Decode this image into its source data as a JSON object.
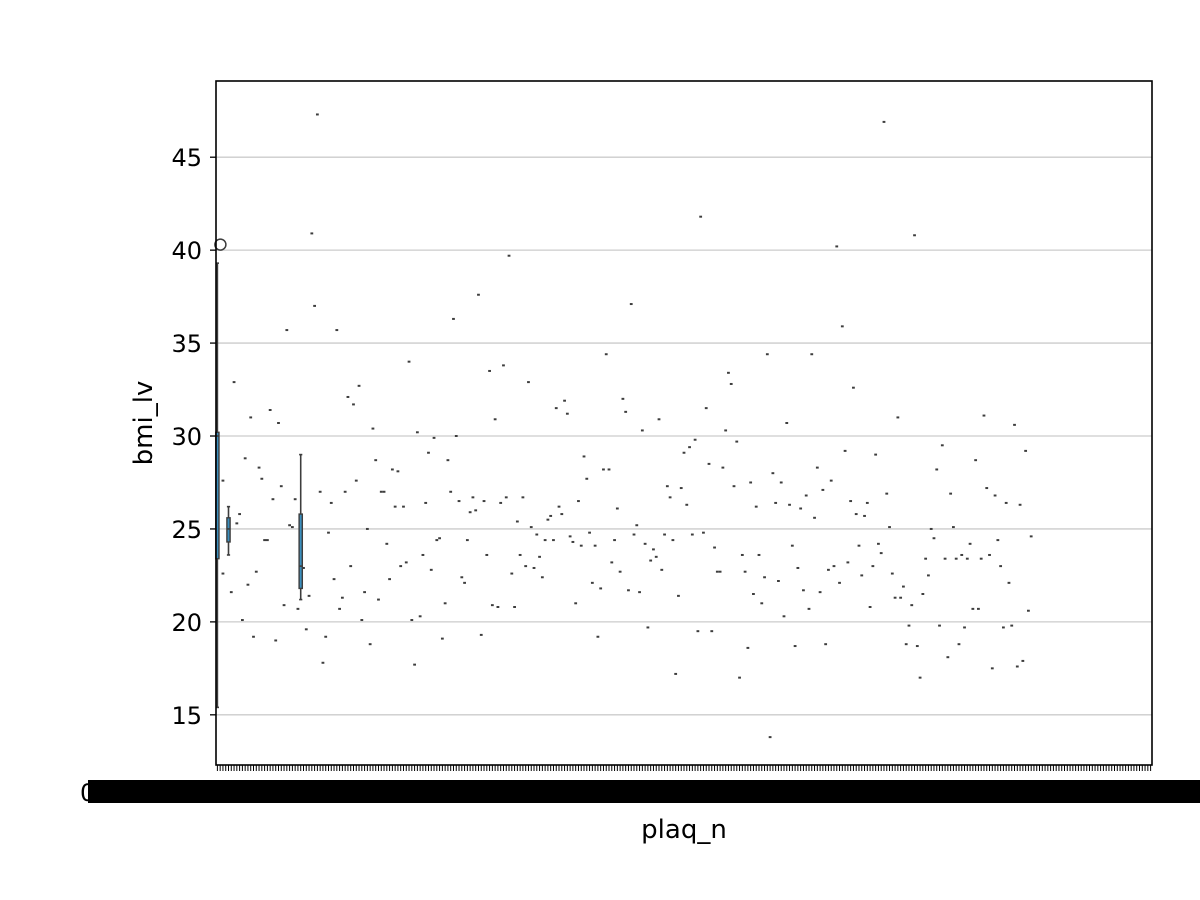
{
  "chart_data": {
    "type": "box",
    "title": "",
    "xlabel": "plaq_n",
    "ylabel": "bmi_lv",
    "ylim": [
      12.3,
      49.1
    ],
    "yticks": [
      15,
      20,
      25,
      30,
      35,
      40,
      45
    ],
    "grid": "y",
    "legend": "none",
    "category_count": 337,
    "x_tick_labels_overlapping": true,
    "x_tick_label_first": "0",
    "box_color": "#3a8fbf",
    "point_color": "#3d3d3d",
    "boxes": [
      {
        "category_index": 0,
        "q1": 23.4,
        "median": 30.0,
        "q3": 30.2,
        "whisker_low": 15.4,
        "whisker_high": 39.3,
        "outliers": [
          40.3
        ]
      },
      {
        "category_index": 4,
        "q1": 24.3,
        "median": 25.0,
        "q3": 25.6,
        "whisker_low": 23.6,
        "whisker_high": 26.2,
        "outliers": []
      },
      {
        "category_index": 30,
        "q1": 21.8,
        "median": 23.0,
        "q3": 25.8,
        "whisker_low": 21.2,
        "whisker_high": 29.0,
        "outliers": []
      }
    ],
    "single_values": [
      [
        2,
        27.6
      ],
      [
        2,
        22.6
      ],
      [
        5,
        21.6
      ],
      [
        6,
        32.9
      ],
      [
        7,
        25.3
      ],
      [
        8,
        25.8
      ],
      [
        9,
        20.1
      ],
      [
        10,
        28.8
      ],
      [
        11,
        22.0
      ],
      [
        12,
        31.0
      ],
      [
        13,
        19.2
      ],
      [
        14,
        22.7
      ],
      [
        15,
        28.3
      ],
      [
        16,
        27.7
      ],
      [
        17,
        24.4
      ],
      [
        18,
        24.4
      ],
      [
        19,
        31.4
      ],
      [
        20,
        26.6
      ],
      [
        21,
        19.0
      ],
      [
        22,
        30.7
      ],
      [
        23,
        27.3
      ],
      [
        24,
        20.9
      ],
      [
        25,
        35.7
      ],
      [
        26,
        25.2
      ],
      [
        27,
        25.1
      ],
      [
        28,
        26.6
      ],
      [
        29,
        20.7
      ],
      [
        31,
        22.9
      ],
      [
        32,
        19.6
      ],
      [
        33,
        21.4
      ],
      [
        34,
        40.9
      ],
      [
        35,
        37.0
      ],
      [
        36,
        47.3
      ],
      [
        37,
        27.0
      ],
      [
        38,
        17.8
      ],
      [
        39,
        19.2
      ],
      [
        40,
        24.8
      ],
      [
        41,
        26.4
      ],
      [
        42,
        22.3
      ],
      [
        43,
        35.7
      ],
      [
        44,
        20.7
      ],
      [
        45,
        21.3
      ],
      [
        46,
        27.0
      ],
      [
        47,
        32.1
      ],
      [
        48,
        23.0
      ],
      [
        49,
        31.7
      ],
      [
        50,
        27.6
      ],
      [
        51,
        32.7
      ],
      [
        52,
        20.1
      ],
      [
        53,
        21.6
      ],
      [
        54,
        25.0
      ],
      [
        55,
        18.8
      ],
      [
        56,
        30.4
      ],
      [
        57,
        28.7
      ],
      [
        58,
        21.2
      ],
      [
        59,
        27.0
      ],
      [
        60,
        27.0
      ],
      [
        61,
        24.2
      ],
      [
        62,
        22.3
      ],
      [
        63,
        28.2
      ],
      [
        64,
        26.2
      ],
      [
        65,
        28.1
      ],
      [
        66,
        23.0
      ],
      [
        67,
        26.2
      ],
      [
        68,
        23.2
      ],
      [
        69,
        34.0
      ],
      [
        70,
        20.1
      ],
      [
        71,
        17.7
      ],
      [
        72,
        30.2
      ],
      [
        73,
        20.3
      ],
      [
        74,
        23.6
      ],
      [
        75,
        26.4
      ],
      [
        76,
        29.1
      ],
      [
        77,
        22.8
      ],
      [
        78,
        29.9
      ],
      [
        79,
        24.4
      ],
      [
        80,
        24.5
      ],
      [
        81,
        19.1
      ],
      [
        82,
        21.0
      ],
      [
        83,
        28.7
      ],
      [
        84,
        27.0
      ],
      [
        85,
        36.3
      ],
      [
        86,
        30.0
      ],
      [
        87,
        26.5
      ],
      [
        88,
        22.4
      ],
      [
        89,
        22.1
      ],
      [
        90,
        24.4
      ],
      [
        91,
        25.9
      ],
      [
        92,
        26.7
      ],
      [
        93,
        26.0
      ],
      [
        94,
        37.6
      ],
      [
        95,
        19.3
      ],
      [
        96,
        26.5
      ],
      [
        97,
        23.6
      ],
      [
        98,
        33.5
      ],
      [
        99,
        20.9
      ],
      [
        100,
        30.9
      ],
      [
        101,
        20.8
      ],
      [
        102,
        26.4
      ],
      [
        103,
        33.8
      ],
      [
        104,
        26.7
      ],
      [
        105,
        39.7
      ],
      [
        106,
        22.6
      ],
      [
        107,
        20.8
      ],
      [
        108,
        25.4
      ],
      [
        109,
        23.6
      ],
      [
        110,
        26.7
      ],
      [
        111,
        23.0
      ],
      [
        112,
        32.9
      ],
      [
        113,
        25.1
      ],
      [
        114,
        22.9
      ],
      [
        115,
        24.7
      ],
      [
        116,
        23.5
      ],
      [
        117,
        22.4
      ],
      [
        118,
        24.4
      ],
      [
        119,
        25.5
      ],
      [
        120,
        25.7
      ],
      [
        121,
        24.4
      ],
      [
        122,
        31.5
      ],
      [
        123,
        26.2
      ],
      [
        124,
        25.8
      ],
      [
        125,
        31.9
      ],
      [
        126,
        31.2
      ],
      [
        127,
        24.6
      ],
      [
        128,
        24.3
      ],
      [
        129,
        21.0
      ],
      [
        130,
        26.5
      ],
      [
        131,
        24.1
      ],
      [
        132,
        28.9
      ],
      [
        133,
        27.7
      ],
      [
        134,
        24.8
      ],
      [
        135,
        22.1
      ],
      [
        136,
        24.1
      ],
      [
        137,
        19.2
      ],
      [
        138,
        21.8
      ],
      [
        139,
        28.2
      ],
      [
        140,
        34.4
      ],
      [
        141,
        28.2
      ],
      [
        142,
        23.2
      ],
      [
        143,
        24.4
      ],
      [
        144,
        26.1
      ],
      [
        145,
        22.7
      ],
      [
        146,
        32.0
      ],
      [
        147,
        31.3
      ],
      [
        148,
        21.7
      ],
      [
        149,
        37.1
      ],
      [
        150,
        24.7
      ],
      [
        151,
        25.2
      ],
      [
        152,
        21.6
      ],
      [
        153,
        30.3
      ],
      [
        154,
        24.2
      ],
      [
        155,
        19.7
      ],
      [
        156,
        23.3
      ],
      [
        157,
        23.9
      ],
      [
        158,
        23.5
      ],
      [
        159,
        30.9
      ],
      [
        160,
        22.8
      ],
      [
        161,
        24.7
      ],
      [
        162,
        27.3
      ],
      [
        163,
        26.7
      ],
      [
        164,
        24.4
      ],
      [
        165,
        17.2
      ],
      [
        166,
        21.4
      ],
      [
        167,
        27.2
      ],
      [
        168,
        29.1
      ],
      [
        169,
        26.3
      ],
      [
        170,
        29.4
      ],
      [
        171,
        24.7
      ],
      [
        172,
        29.8
      ],
      [
        173,
        19.5
      ],
      [
        174,
        41.8
      ],
      [
        175,
        24.8
      ],
      [
        176,
        31.5
      ],
      [
        177,
        28.5
      ],
      [
        178,
        19.5
      ],
      [
        179,
        24.0
      ],
      [
        180,
        22.7
      ],
      [
        181,
        22.7
      ],
      [
        182,
        28.3
      ],
      [
        183,
        30.3
      ],
      [
        184,
        33.4
      ],
      [
        185,
        32.8
      ],
      [
        186,
        27.3
      ],
      [
        187,
        29.7
      ],
      [
        188,
        17.0
      ],
      [
        189,
        23.6
      ],
      [
        190,
        22.7
      ],
      [
        191,
        18.6
      ],
      [
        192,
        27.5
      ],
      [
        193,
        21.5
      ],
      [
        194,
        26.2
      ],
      [
        195,
        23.6
      ],
      [
        196,
        21.0
      ],
      [
        197,
        22.4
      ],
      [
        198,
        34.4
      ],
      [
        199,
        13.8
      ],
      [
        200,
        28.0
      ],
      [
        201,
        26.4
      ],
      [
        202,
        22.2
      ],
      [
        203,
        27.5
      ],
      [
        204,
        20.3
      ],
      [
        205,
        30.7
      ],
      [
        206,
        26.3
      ],
      [
        207,
        24.1
      ],
      [
        208,
        18.7
      ],
      [
        209,
        22.9
      ],
      [
        210,
        26.1
      ],
      [
        211,
        21.7
      ],
      [
        212,
        26.8
      ],
      [
        213,
        20.7
      ],
      [
        214,
        34.4
      ],
      [
        215,
        25.6
      ],
      [
        216,
        28.3
      ],
      [
        217,
        21.6
      ],
      [
        218,
        27.1
      ],
      [
        219,
        18.8
      ],
      [
        220,
        22.8
      ],
      [
        221,
        27.6
      ],
      [
        222,
        23.0
      ],
      [
        223,
        40.2
      ],
      [
        224,
        22.1
      ],
      [
        225,
        35.9
      ],
      [
        226,
        29.2
      ],
      [
        227,
        23.2
      ],
      [
        228,
        26.5
      ],
      [
        229,
        32.6
      ],
      [
        230,
        25.8
      ],
      [
        231,
        24.1
      ],
      [
        232,
        22.5
      ],
      [
        233,
        25.7
      ],
      [
        234,
        26.4
      ],
      [
        235,
        20.8
      ],
      [
        236,
        23.0
      ],
      [
        237,
        29.0
      ],
      [
        238,
        24.2
      ],
      [
        239,
        23.7
      ],
      [
        240,
        46.9
      ],
      [
        241,
        26.9
      ],
      [
        242,
        25.1
      ],
      [
        243,
        22.6
      ],
      [
        244,
        21.3
      ],
      [
        245,
        31.0
      ],
      [
        246,
        21.3
      ],
      [
        247,
        21.9
      ],
      [
        248,
        18.8
      ],
      [
        249,
        19.8
      ],
      [
        250,
        20.9
      ],
      [
        251,
        40.8
      ],
      [
        252,
        18.7
      ],
      [
        253,
        17.0
      ],
      [
        254,
        21.5
      ],
      [
        255,
        23.4
      ],
      [
        256,
        22.5
      ],
      [
        257,
        25.0
      ],
      [
        258,
        24.5
      ],
      [
        259,
        28.2
      ],
      [
        260,
        19.8
      ],
      [
        261,
        29.5
      ],
      [
        262,
        23.4
      ],
      [
        263,
        18.1
      ],
      [
        264,
        26.9
      ],
      [
        265,
        25.1
      ],
      [
        266,
        23.4
      ],
      [
        267,
        18.8
      ],
      [
        268,
        23.6
      ],
      [
        269,
        19.7
      ],
      [
        270,
        23.4
      ],
      [
        271,
        24.2
      ],
      [
        272,
        20.7
      ],
      [
        273,
        28.7
      ],
      [
        274,
        20.7
      ],
      [
        275,
        23.4
      ],
      [
        276,
        31.1
      ],
      [
        277,
        27.2
      ],
      [
        278,
        23.6
      ],
      [
        279,
        17.5
      ],
      [
        280,
        26.8
      ],
      [
        281,
        24.4
      ],
      [
        282,
        23.0
      ],
      [
        283,
        19.7
      ],
      [
        284,
        26.4
      ],
      [
        285,
        22.1
      ],
      [
        286,
        19.8
      ],
      [
        287,
        30.6
      ],
      [
        288,
        17.6
      ],
      [
        289,
        26.3
      ],
      [
        290,
        17.9
      ],
      [
        291,
        29.2
      ],
      [
        292,
        20.6
      ],
      [
        293,
        24.6
      ]
    ]
  }
}
